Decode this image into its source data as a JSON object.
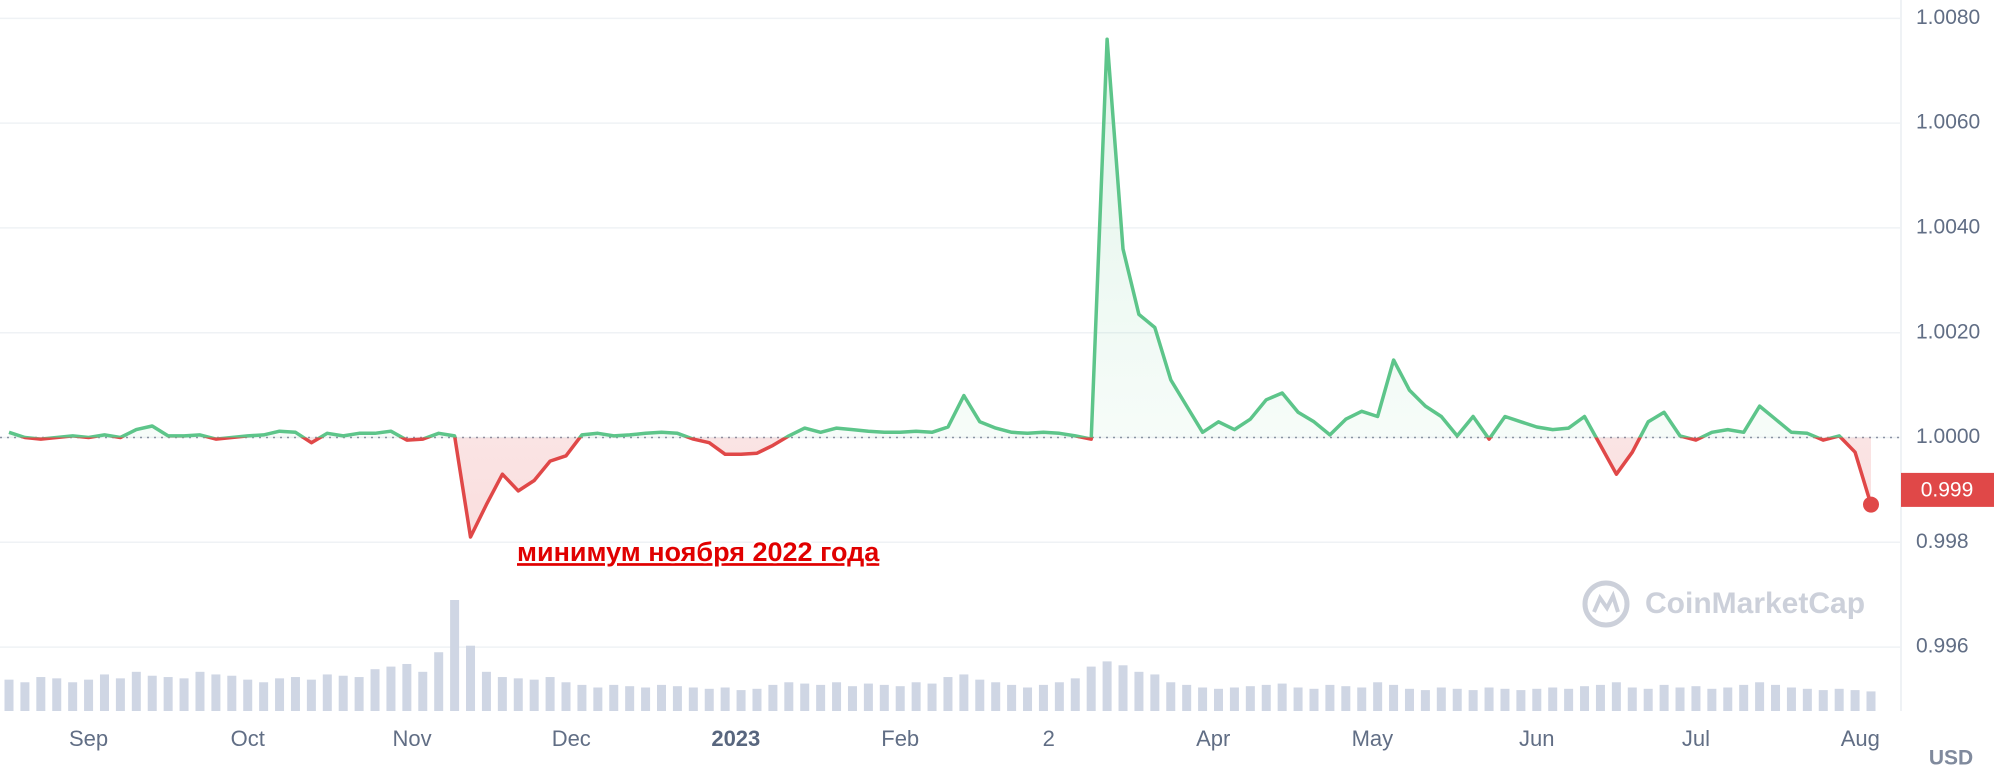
{
  "chart_data": {
    "type": "line",
    "series": [
      {
        "name": "Price",
        "color": "#5dc58a",
        "values": [
          1.0001,
          1.0,
          0.99997,
          1.0,
          1.00003,
          1.0,
          1.00005,
          1.0,
          1.00015,
          1.00022,
          1.00003,
          1.00003,
          1.00005,
          0.99997,
          1.0,
          1.00003,
          1.00005,
          1.00012,
          1.0001,
          0.9999,
          1.00008,
          1.00003,
          1.00008,
          1.00008,
          1.00012,
          0.99995,
          0.99997,
          1.00008,
          1.00003,
          0.9981,
          0.99872,
          0.9993,
          0.99898,
          0.99918,
          0.99955,
          0.99965,
          1.00005,
          1.00008,
          1.00003,
          1.00005,
          1.00008,
          1.0001,
          1.00008,
          0.99997,
          0.9999,
          0.99968,
          0.99968,
          0.9997,
          0.99985,
          1.00003,
          1.00018,
          1.0001,
          1.00018,
          1.00015,
          1.00012,
          1.0001,
          1.0001,
          1.00012,
          1.0001,
          1.0002,
          1.0008,
          1.0003,
          1.00018,
          1.0001,
          1.00008,
          1.0001,
          1.00008,
          1.00003,
          0.99997,
          1.0076,
          1.0036,
          1.00235,
          1.0021,
          1.0011,
          1.0006,
          1.0001,
          1.0003,
          1.00015,
          1.00035,
          1.00072,
          1.00085,
          1.00048,
          1.0003,
          1.00005,
          1.00035,
          1.0005,
          1.0004,
          1.00148,
          1.0009,
          1.0006,
          1.0004,
          1.00003,
          1.0004,
          0.99997,
          1.0004,
          1.0003,
          1.0002,
          1.00015,
          1.00018,
          1.0004,
          0.99985,
          0.9993,
          0.99972,
          1.0003,
          1.00048,
          1.00003,
          0.99995,
          1.0001,
          1.00015,
          1.0001,
          1.0006,
          1.00035,
          1.0001,
          1.00008,
          0.99995,
          1.00003,
          0.99972,
          0.99872
        ]
      }
    ],
    "below_color": "#e04848",
    "baseline": 1,
    "volume": {
      "color": "#cfd6e4",
      "values": [
        24,
        22,
        26,
        25,
        22,
        24,
        28,
        25,
        30,
        27,
        26,
        25,
        30,
        28,
        27,
        24,
        22,
        25,
        26,
        24,
        28,
        27,
        26,
        32,
        34,
        36,
        30,
        45,
        85,
        50,
        30,
        26,
        25,
        24,
        26,
        22,
        20,
        18,
        20,
        19,
        18,
        20,
        19,
        18,
        17,
        18,
        16,
        17,
        20,
        22,
        21,
        20,
        22,
        19,
        21,
        20,
        19,
        22,
        21,
        26,
        28,
        24,
        22,
        20,
        18,
        20,
        22,
        25,
        34,
        38,
        35,
        30,
        28,
        22,
        20,
        18,
        17,
        18,
        19,
        20,
        21,
        18,
        17,
        20,
        19,
        18,
        22,
        20,
        17,
        16,
        18,
        17,
        16,
        18,
        17,
        16,
        17,
        18,
        17,
        19,
        20,
        22,
        18,
        17,
        20,
        18,
        19,
        17,
        18,
        20,
        22,
        20,
        18,
        17,
        16,
        17,
        16,
        15
      ]
    },
    "xlim": [
      0,
      117
    ],
    "xticks": [
      {
        "value": 5,
        "label": "Sep"
      },
      {
        "value": 15,
        "label": "Oct"
      },
      {
        "value": 25.33,
        "label": "Nov"
      },
      {
        "value": 35.33,
        "label": "Dec"
      },
      {
        "value": 45.67,
        "label": "2023"
      },
      {
        "value": 56,
        "label": "Feb"
      },
      {
        "value": 65.33,
        "label": "2"
      },
      {
        "value": 75.67,
        "label": "Apr"
      },
      {
        "value": 85.67,
        "label": "May"
      },
      {
        "value": 96,
        "label": "Jun"
      },
      {
        "value": 106,
        "label": "Jul"
      },
      {
        "value": 116.33,
        "label": "Aug"
      }
    ],
    "ylim": [
      0.99478,
      1.00835
    ],
    "yticks": [
      {
        "value": 1.008,
        "label": "1.0080"
      },
      {
        "value": 1.006,
        "label": "1.0060"
      },
      {
        "value": 1.004,
        "label": "1.0040"
      },
      {
        "value": 1.002,
        "label": "1.0020"
      },
      {
        "value": 1,
        "label": "1.0000"
      },
      0.998,
      0.996
    ],
    "grid": true,
    "current_value": 0.999,
    "annotation": "минимум ноября 2022 года",
    "watermark": "CoinMarketCap",
    "y_axis_label": "USD"
  }
}
